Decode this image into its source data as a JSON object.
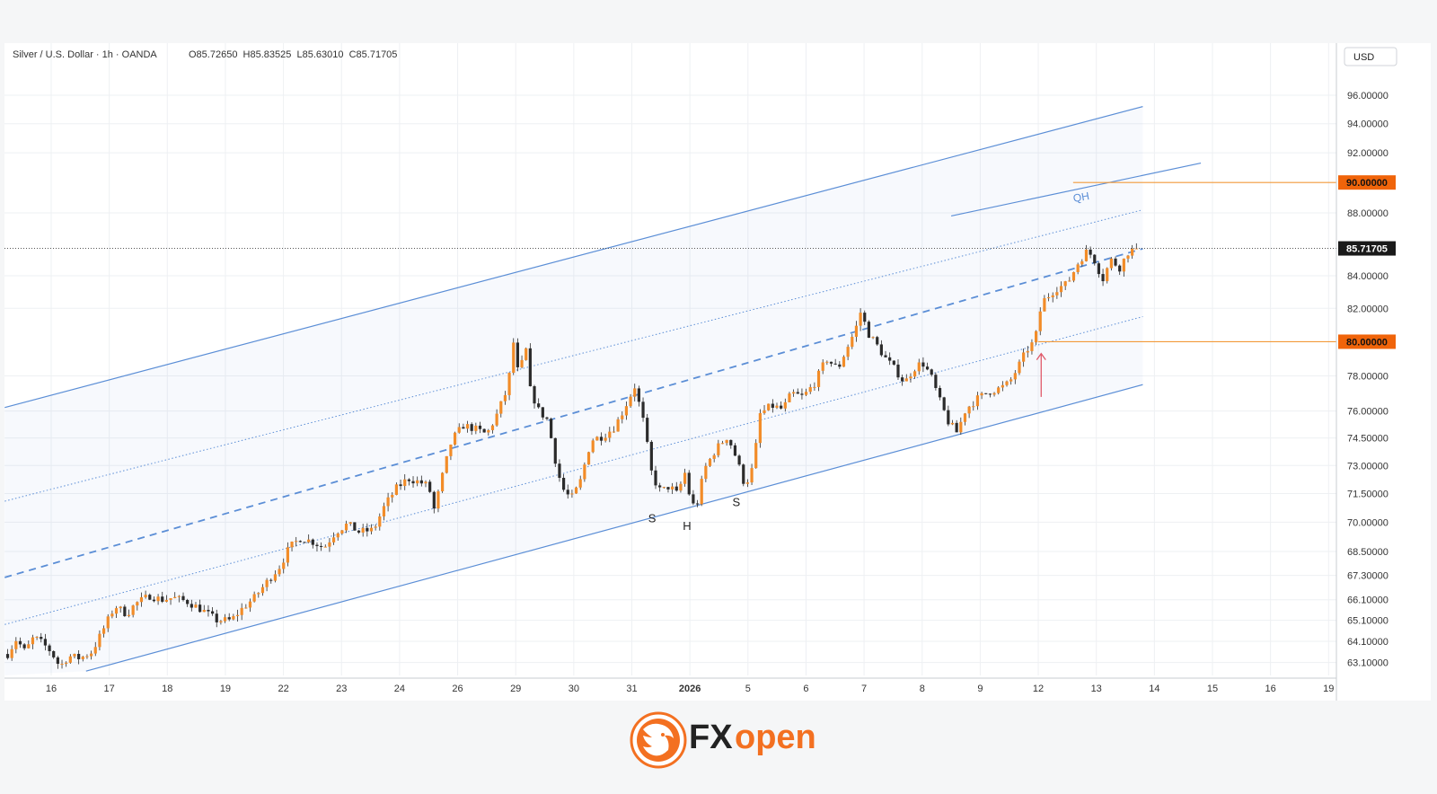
{
  "header": {
    "symbol": "Silver / U.S. Dollar · 1h · OANDA",
    "ohlc": "O85.72650  H85.83525  L85.63010  C85.71705"
  },
  "currency_label": "USD",
  "brand": {
    "name_fx": "FX",
    "name_open": "open",
    "logo_icon": "lion-head-icon",
    "colors": {
      "fx": "#222222",
      "open": "#f37021"
    }
  },
  "colors": {
    "candle_up": "#f28c28",
    "candle_down": "#2b2b2b",
    "channel": "#5b8ed6",
    "level": "#f29a3a",
    "level_label_bg": "#f0640a",
    "price_tag_bg": "#1a1a1a",
    "arrow": "#e05a6a",
    "grid": "#eef0f3"
  },
  "chart_data": {
    "type": "candlestick",
    "title": "Silver / U.S. Dollar · 1h · OANDA",
    "ohlc_readout": {
      "open": 85.7265,
      "high": 85.83525,
      "low": 85.6301,
      "close": 85.71705
    },
    "y_unit": "USD",
    "y_scale": "log",
    "y_range": [
      62.5,
      98.0
    ],
    "x_range": [
      0,
      23.3
    ],
    "x_ticks": [
      {
        "x": 0,
        "label": "16"
      },
      {
        "x": 1,
        "label": "17"
      },
      {
        "x": 2,
        "label": "18"
      },
      {
        "x": 3,
        "label": "19"
      },
      {
        "x": 4,
        "label": "22"
      },
      {
        "x": 5,
        "label": "23"
      },
      {
        "x": 6,
        "label": "24"
      },
      {
        "x": 7,
        "label": "26"
      },
      {
        "x": 8,
        "label": "29"
      },
      {
        "x": 9,
        "label": "30"
      },
      {
        "x": 10,
        "label": "31"
      },
      {
        "x": 11,
        "label": "2026"
      },
      {
        "x": 12,
        "label": "5"
      },
      {
        "x": 13,
        "label": "6"
      },
      {
        "x": 14,
        "label": "7"
      },
      {
        "x": 15,
        "label": "8"
      },
      {
        "x": 16,
        "label": "9"
      },
      {
        "x": 17,
        "label": "12"
      },
      {
        "x": 18,
        "label": "13"
      },
      {
        "x": 19,
        "label": "14"
      },
      {
        "x": 20,
        "label": "15"
      },
      {
        "x": 21,
        "label": "16"
      },
      {
        "x": 22,
        "label": "19"
      }
    ],
    "y_ticks": [
      {
        "v": 96.0,
        "label": "96.00000"
      },
      {
        "v": 94.0,
        "label": "94.00000"
      },
      {
        "v": 92.0,
        "label": "92.00000"
      },
      {
        "v": 88.0,
        "label": "88.00000"
      },
      {
        "v": 84.0,
        "label": "84.00000"
      },
      {
        "v": 82.0,
        "label": "82.00000"
      },
      {
        "v": 78.0,
        "label": "78.00000"
      },
      {
        "v": 76.0,
        "label": "76.00000"
      },
      {
        "v": 74.5,
        "label": "74.50000"
      },
      {
        "v": 73.0,
        "label": "73.00000"
      },
      {
        "v": 71.5,
        "label": "71.50000"
      },
      {
        "v": 70.0,
        "label": "70.00000"
      },
      {
        "v": 68.5,
        "label": "68.50000"
      },
      {
        "v": 67.3,
        "label": "67.30000"
      },
      {
        "v": 66.1,
        "label": "66.10000"
      },
      {
        "v": 65.1,
        "label": "65.10000"
      },
      {
        "v": 64.1,
        "label": "64.10000"
      },
      {
        "v": 63.1,
        "label": "63.10000"
      }
    ],
    "price_path": [
      [
        -0.75,
        63.5
      ],
      [
        -0.6,
        64.2
      ],
      [
        -0.45,
        63.6
      ],
      [
        -0.3,
        64.3
      ],
      [
        -0.15,
        64.0
      ],
      [
        0.0,
        63.6
      ],
      [
        0.15,
        62.9
      ],
      [
        0.3,
        63.4
      ],
      [
        0.5,
        63.3
      ],
      [
        0.7,
        63.6
      ],
      [
        0.85,
        64.4
      ],
      [
        1.1,
        65.8
      ],
      [
        1.3,
        65.4
      ],
      [
        1.45,
        65.9
      ],
      [
        1.7,
        66.3
      ],
      [
        1.9,
        66.1
      ],
      [
        2.1,
        66.2
      ],
      [
        2.35,
        66.0
      ],
      [
        2.6,
        65.6
      ],
      [
        2.85,
        65.1
      ],
      [
        3.1,
        65.1
      ],
      [
        3.3,
        65.7
      ],
      [
        3.5,
        66.2
      ],
      [
        3.75,
        67.1
      ],
      [
        3.95,
        67.8
      ],
      [
        4.1,
        68.7
      ],
      [
        4.3,
        69.2
      ],
      [
        4.5,
        69.0
      ],
      [
        4.7,
        68.7
      ],
      [
        4.9,
        69.5
      ],
      [
        5.1,
        69.9
      ],
      [
        5.3,
        69.5
      ],
      [
        5.55,
        69.6
      ],
      [
        5.75,
        70.9
      ],
      [
        5.95,
        71.8
      ],
      [
        6.15,
        72.3
      ],
      [
        6.35,
        72.1
      ],
      [
        6.5,
        71.9
      ],
      [
        6.6,
        70.6
      ],
      [
        6.75,
        72.6
      ],
      [
        6.9,
        74.4
      ],
      [
        7.1,
        75.2
      ],
      [
        7.3,
        75.0
      ],
      [
        7.5,
        74.7
      ],
      [
        7.65,
        75.6
      ],
      [
        7.85,
        77.2
      ],
      [
        7.95,
        79.3
      ],
      [
        8.0,
        82.0
      ],
      [
        8.05,
        76.6
      ],
      [
        8.15,
        80.4
      ],
      [
        8.25,
        77.2
      ],
      [
        8.4,
        76.0
      ],
      [
        8.55,
        75.5
      ],
      [
        8.7,
        73.0
      ],
      [
        8.8,
        71.8
      ],
      [
        8.95,
        71.2
      ],
      [
        9.1,
        72.0
      ],
      [
        9.3,
        74.4
      ],
      [
        9.5,
        74.6
      ],
      [
        9.7,
        75.1
      ],
      [
        9.85,
        76.0
      ],
      [
        10.05,
        77.4
      ],
      [
        10.2,
        75.4
      ],
      [
        10.35,
        72.4
      ],
      [
        10.5,
        71.6
      ],
      [
        10.65,
        71.9
      ],
      [
        10.8,
        71.4
      ],
      [
        10.9,
        72.8
      ],
      [
        11.0,
        71.3
      ],
      [
        11.1,
        70.6
      ],
      [
        11.25,
        72.8
      ],
      [
        11.45,
        73.9
      ],
      [
        11.65,
        74.6
      ],
      [
        11.8,
        73.4
      ],
      [
        11.95,
        71.9
      ],
      [
        12.1,
        73.0
      ],
      [
        12.2,
        75.8
      ],
      [
        12.4,
        76.3
      ],
      [
        12.6,
        76.1
      ],
      [
        12.75,
        77.0
      ],
      [
        12.95,
        76.8
      ],
      [
        13.15,
        77.6
      ],
      [
        13.35,
        79.0
      ],
      [
        13.55,
        78.4
      ],
      [
        13.7,
        79.6
      ],
      [
        13.85,
        80.7
      ],
      [
        13.95,
        81.9
      ],
      [
        14.05,
        80.6
      ],
      [
        14.2,
        79.9
      ],
      [
        14.35,
        79.1
      ],
      [
        14.55,
        78.3
      ],
      [
        14.7,
        77.6
      ],
      [
        14.85,
        78.4
      ],
      [
        15.0,
        78.8
      ],
      [
        15.15,
        78.0
      ],
      [
        15.3,
        76.6
      ],
      [
        15.45,
        75.4
      ],
      [
        15.6,
        74.8
      ],
      [
        15.75,
        76.1
      ],
      [
        15.95,
        76.7
      ],
      [
        16.15,
        77.1
      ],
      [
        16.35,
        77.3
      ],
      [
        16.5,
        77.6
      ],
      [
        16.65,
        78.5
      ],
      [
        16.8,
        79.5
      ],
      [
        16.95,
        80.1
      ],
      [
        17.0,
        81.5
      ],
      [
        17.1,
        82.5
      ],
      [
        17.3,
        83.2
      ],
      [
        17.5,
        83.5
      ],
      [
        17.7,
        84.9
      ],
      [
        17.85,
        85.6
      ],
      [
        18.0,
        84.8
      ],
      [
        18.1,
        83.7
      ],
      [
        18.25,
        85.0
      ],
      [
        18.4,
        84.5
      ],
      [
        18.55,
        85.5
      ],
      [
        18.7,
        85.72
      ]
    ],
    "channel": {
      "upper": {
        "from": {
          "x": -0.8,
          "y": 76.2
        },
        "to": {
          "x": 18.8,
          "y": 95.2
        }
      },
      "inner_upper_dotted": {
        "from": {
          "x": -0.8,
          "y": 71.1
        },
        "to": {
          "x": 18.8,
          "y": 88.2
        }
      },
      "qh_line": {
        "from": {
          "x": 15.5,
          "y": 87.8
        },
        "to": {
          "x": 19.8,
          "y": 91.3
        }
      },
      "median_dashed": {
        "from": {
          "x": -0.8,
          "y": 67.2
        },
        "to": {
          "x": 18.8,
          "y": 85.7
        }
      },
      "inner_lower_dotted": {
        "from": {
          "x": -0.8,
          "y": 64.9
        },
        "to": {
          "x": 18.8,
          "y": 81.5
        }
      },
      "lower": {
        "from": {
          "x": 0.6,
          "y": 62.7
        },
        "to": {
          "x": 18.8,
          "y": 77.5
        }
      }
    },
    "levels": [
      {
        "price": 90.0,
        "label": "90.00000",
        "x_from": 17.6
      },
      {
        "price": 80.0,
        "label": "80.00000",
        "x_from": 17.0
      }
    ],
    "last_price": {
      "price": 85.71705,
      "label": "85.71705"
    },
    "annotations": [
      {
        "text": "S",
        "x": 10.35,
        "y": 70.0
      },
      {
        "text": "H",
        "x": 10.95,
        "y": 69.6
      },
      {
        "text": "S",
        "x": 11.8,
        "y": 70.85
      },
      {
        "text": "QH",
        "x": 17.75,
        "y": 88.8
      }
    ],
    "arrow": {
      "x": 17.05,
      "from": 76.8,
      "to": 79.3
    },
    "grid": true
  }
}
